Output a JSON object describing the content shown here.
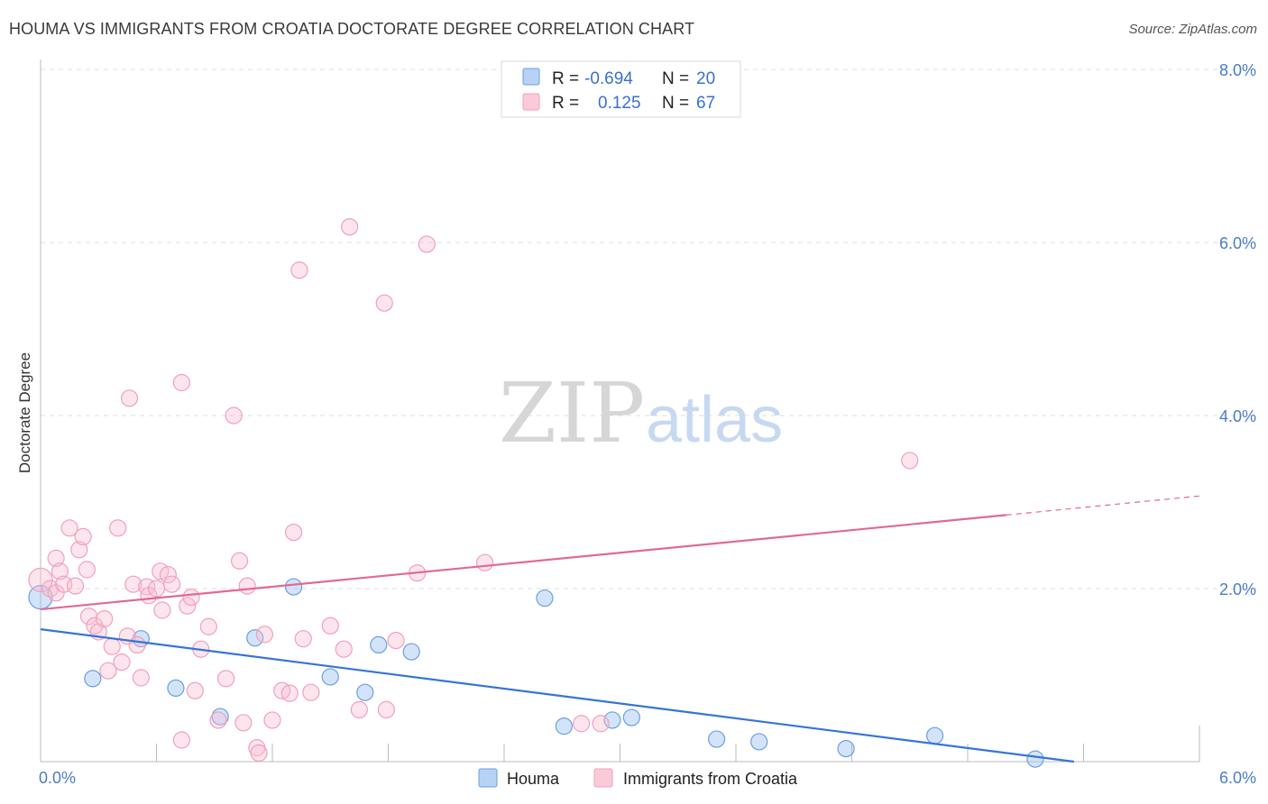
{
  "title": "HOUMA VS IMMIGRANTS FROM CROATIA DOCTORATE DEGREE CORRELATION CHART",
  "source": "Source: ZipAtlas.com",
  "watermark": {
    "zip": "ZIP",
    "atlas": "atlas"
  },
  "colors": {
    "houma": "#6a9fe0",
    "croatia": "#f0a0bb",
    "houma_line": "#3575d6",
    "croatia_line": "#e06a93",
    "tick_label": "#4a7cc7"
  },
  "legend": {
    "houma": {
      "r_label": "R = ",
      "r_value": "-0.694",
      "n_label": "N = ",
      "n_value": "20"
    },
    "croatia": {
      "r_label": "R = ",
      "r_value": "0.125",
      "n_label": "N = ",
      "n_value": "67"
    }
  },
  "chart_data": {
    "type": "scatter",
    "ylabel": "Doctorate Degree",
    "xlim": [
      0,
      6
    ],
    "ylim": [
      0,
      8
    ],
    "x_tick_labels": [
      "0.0%",
      "6.0%"
    ],
    "y_tick_labels": [
      "2.0%",
      "4.0%",
      "6.0%",
      "8.0%"
    ],
    "y_ticks": [
      2,
      4,
      6,
      8
    ],
    "series": [
      {
        "name": "Houma",
        "key": "houma",
        "points": [
          [
            0.0,
            1.9
          ],
          [
            0.27,
            0.96
          ],
          [
            0.52,
            1.42
          ],
          [
            0.7,
            0.85
          ],
          [
            0.93,
            0.52
          ],
          [
            1.11,
            1.43
          ],
          [
            1.31,
            2.02
          ],
          [
            1.5,
            0.98
          ],
          [
            1.68,
            0.8
          ],
          [
            1.75,
            1.35
          ],
          [
            1.92,
            1.27
          ],
          [
            2.61,
            1.89
          ],
          [
            2.71,
            0.41
          ],
          [
            2.96,
            0.48
          ],
          [
            3.06,
            0.51
          ],
          [
            3.5,
            0.26
          ],
          [
            3.72,
            0.23
          ],
          [
            4.17,
            0.15
          ],
          [
            4.63,
            0.3
          ],
          [
            5.15,
            0.03
          ]
        ],
        "trend": {
          "x": [
            0.0,
            5.35
          ],
          "y": [
            1.53,
            0.0
          ]
        }
      },
      {
        "name": "Immigrants from Croatia",
        "key": "croatia",
        "points": [
          [
            0.0,
            2.1
          ],
          [
            0.05,
            2.0
          ],
          [
            0.08,
            2.35
          ],
          [
            0.08,
            1.95
          ],
          [
            0.1,
            2.2
          ],
          [
            0.12,
            2.05
          ],
          [
            0.15,
            2.7
          ],
          [
            0.18,
            2.03
          ],
          [
            0.2,
            2.45
          ],
          [
            0.22,
            2.6
          ],
          [
            0.24,
            2.22
          ],
          [
            0.25,
            1.68
          ],
          [
            0.28,
            1.57
          ],
          [
            0.3,
            1.5
          ],
          [
            0.33,
            1.65
          ],
          [
            0.35,
            1.05
          ],
          [
            0.37,
            1.33
          ],
          [
            0.4,
            2.7
          ],
          [
            0.42,
            1.15
          ],
          [
            0.45,
            1.45
          ],
          [
            0.46,
            4.2
          ],
          [
            0.48,
            2.05
          ],
          [
            0.5,
            1.35
          ],
          [
            0.52,
            0.97
          ],
          [
            0.55,
            2.02
          ],
          [
            0.56,
            1.92
          ],
          [
            0.6,
            2.0
          ],
          [
            0.62,
            2.2
          ],
          [
            0.63,
            1.75
          ],
          [
            0.66,
            2.16
          ],
          [
            0.68,
            2.05
          ],
          [
            0.73,
            0.25
          ],
          [
            0.73,
            4.38
          ],
          [
            0.76,
            1.8
          ],
          [
            0.78,
            1.9
          ],
          [
            0.8,
            0.82
          ],
          [
            0.83,
            1.3
          ],
          [
            0.87,
            1.56
          ],
          [
            0.92,
            0.48
          ],
          [
            0.96,
            0.96
          ],
          [
            1.0,
            4.0
          ],
          [
            1.03,
            2.32
          ],
          [
            1.05,
            0.45
          ],
          [
            1.07,
            2.03
          ],
          [
            1.12,
            0.16
          ],
          [
            1.13,
            0.1
          ],
          [
            1.16,
            1.47
          ],
          [
            1.2,
            0.48
          ],
          [
            1.25,
            0.82
          ],
          [
            1.29,
            0.79
          ],
          [
            1.31,
            2.65
          ],
          [
            1.34,
            5.68
          ],
          [
            1.36,
            1.42
          ],
          [
            1.4,
            0.8
          ],
          [
            1.5,
            1.57
          ],
          [
            1.57,
            1.3
          ],
          [
            1.6,
            6.18
          ],
          [
            1.65,
            0.6
          ],
          [
            1.78,
            5.3
          ],
          [
            1.79,
            0.6
          ],
          [
            1.84,
            1.4
          ],
          [
            1.95,
            2.18
          ],
          [
            2.0,
            5.98
          ],
          [
            2.3,
            2.3
          ],
          [
            2.8,
            0.44
          ],
          [
            2.9,
            0.44
          ],
          [
            4.5,
            3.48
          ]
        ],
        "trend": {
          "x": [
            0.0,
            5.0
          ],
          "y": [
            1.76,
            2.85
          ]
        },
        "trend_dashed": {
          "x": [
            5.0,
            6.0
          ],
          "y": [
            2.85,
            3.07
          ]
        }
      }
    ]
  }
}
